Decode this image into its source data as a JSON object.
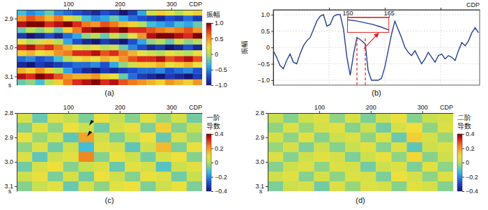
{
  "chart_data": [
    {
      "type": "heatmap",
      "panel_label": "(a)",
      "x": [
        9,
        27,
        45,
        63,
        81,
        99,
        117,
        135,
        153,
        171,
        189,
        207,
        225,
        243,
        261,
        279,
        297,
        315,
        333,
        351
      ],
      "y": [
        2.88,
        2.9,
        2.92,
        2.94,
        2.96,
        2.98,
        3.0,
        3.02,
        3.04,
        3.06,
        3.08,
        3.1,
        3.12
      ],
      "z": [
        [
          -0.3,
          -0.5,
          -0.4,
          -0.2,
          -0.5,
          -0.6,
          -0.7,
          -0.8,
          -0.9,
          -0.7,
          -0.8,
          -1.0,
          -0.8,
          -0.4,
          0.1,
          0.3,
          0.2,
          0.0,
          0.2,
          0.3
        ],
        [
          0.5,
          0.7,
          0.6,
          0.4,
          0.6,
          0.3,
          0.0,
          -0.3,
          -0.5,
          -0.4,
          -0.2,
          -0.4,
          -0.6,
          -0.7,
          -0.8,
          -0.9,
          -0.7,
          -0.8,
          -0.6,
          -0.8
        ],
        [
          0.9,
          1.0,
          1.0,
          0.8,
          0.9,
          1.0,
          0.8,
          0.6,
          0.5,
          0.7,
          0.6,
          0.4,
          0.3,
          0.0,
          -0.3,
          -0.4,
          -0.5,
          -0.3,
          -0.4,
          -0.2
        ],
        [
          -0.2,
          0.0,
          -0.1,
          0.1,
          -0.2,
          0.3,
          0.6,
          0.9,
          1.0,
          1.0,
          0.9,
          1.0,
          0.8,
          0.8,
          0.7,
          0.6,
          0.5,
          0.6,
          0.7,
          0.5
        ],
        [
          -0.8,
          -1.0,
          -0.9,
          -0.7,
          -0.9,
          -0.6,
          -0.4,
          -0.1,
          0.0,
          -0.2,
          0.1,
          -0.1,
          0.2,
          0.5,
          0.9,
          1.0,
          1.0,
          0.9,
          0.8,
          1.0
        ],
        [
          0.2,
          0.0,
          0.1,
          0.3,
          0.0,
          -0.4,
          -0.7,
          -0.9,
          -1.0,
          -0.8,
          -0.9,
          -1.0,
          -0.7,
          -0.4,
          -0.1,
          0.0,
          -0.2,
          0.1,
          -0.1,
          0.0
        ],
        [
          0.8,
          0.9,
          0.7,
          0.8,
          0.6,
          0.4,
          0.2,
          0.1,
          0.2,
          0.0,
          0.1,
          -0.2,
          -0.5,
          -0.7,
          -0.9,
          -0.8,
          -1.0,
          -0.9,
          -0.7,
          -0.9
        ],
        [
          0.3,
          0.4,
          0.2,
          0.3,
          0.5,
          0.6,
          0.8,
          0.8,
          0.9,
          0.7,
          0.8,
          0.6,
          0.4,
          0.2,
          0.1,
          0.0,
          0.2,
          0.1,
          0.0,
          0.2
        ],
        [
          -0.6,
          -0.5,
          -0.7,
          -0.6,
          -0.3,
          0.0,
          0.2,
          0.3,
          0.2,
          0.4,
          0.3,
          0.5,
          0.7,
          0.8,
          0.8,
          0.9,
          0.7,
          0.8,
          0.9,
          0.7
        ],
        [
          -0.9,
          -1.0,
          -0.8,
          -0.9,
          -0.8,
          -0.7,
          -0.6,
          -0.6,
          -0.5,
          -0.7,
          -0.4,
          -0.1,
          0.1,
          0.3,
          0.3,
          0.4,
          0.2,
          0.3,
          0.4,
          0.2
        ],
        [
          0.4,
          0.3,
          0.5,
          0.3,
          0.0,
          -0.4,
          -0.7,
          -0.9,
          -1.0,
          -0.8,
          -0.9,
          -0.8,
          -0.7,
          -0.6,
          -0.6,
          -0.5,
          -0.7,
          -0.6,
          -0.5,
          -0.7
        ],
        [
          0.9,
          0.8,
          1.0,
          0.9,
          0.7,
          0.5,
          0.4,
          0.4,
          0.5,
          0.3,
          0.2,
          -0.2,
          -0.6,
          -0.8,
          -0.9,
          -1.0,
          -0.8,
          -0.9,
          -1.0,
          -0.8
        ],
        [
          -0.2,
          -0.1,
          -0.3,
          0.0,
          0.3,
          0.6,
          0.8,
          0.9,
          1.0,
          0.8,
          0.9,
          0.7,
          0.6,
          0.5,
          0.4,
          0.3,
          0.5,
          0.4,
          0.3,
          0.5
        ]
      ],
      "xlim": [
        0,
        360
      ],
      "xticks": [
        100,
        200,
        300
      ],
      "x_label": "CDP",
      "ylim": [
        2.87,
        3.13
      ],
      "yticks": [
        2.9,
        {
          "value": 3,
          "label": "3.0"
        },
        3.1
      ],
      "y_label": "s",
      "colorbar": {
        "title": "振幅",
        "lim": [
          -1,
          1
        ],
        "ticks": [
          {
            "value": 1,
            "label": "1.0"
          },
          0.5,
          0,
          {
            "value": -0.5,
            "label": "−0.5"
          },
          {
            "value": -1,
            "label": "−1.0"
          }
        ]
      }
    },
    {
      "type": "line",
      "panel_label": "(b)",
      "x": [
        0,
        6,
        12,
        18,
        24,
        30,
        36,
        42,
        48,
        54,
        60,
        66,
        72,
        78,
        84,
        90,
        96,
        102,
        108,
        114,
        120,
        126,
        132,
        138,
        144,
        150,
        155,
        160,
        165,
        170,
        176,
        182,
        188,
        194,
        200,
        206,
        212,
        218,
        224,
        230,
        236,
        242,
        248,
        254,
        260,
        266,
        272,
        278,
        284,
        290,
        296,
        302,
        308,
        314,
        320,
        326,
        332,
        338,
        344,
        350,
        356,
        362,
        368
      ],
      "values": [
        -0.1,
        -0.3,
        -0.55,
        -0.65,
        -0.4,
        -0.2,
        -0.45,
        -0.5,
        -0.2,
        0.05,
        0.2,
        0.3,
        0.55,
        0.8,
        0.95,
        1.0,
        0.65,
        0.7,
        0.95,
        1.0,
        1.0,
        0.55,
        -0.3,
        -0.85,
        -0.2,
        0.3,
        0.25,
        0.18,
        0.1,
        -0.7,
        -1.0,
        -1.0,
        -1.0,
        -0.95,
        -0.6,
        -0.1,
        0.4,
        0.8,
        0.55,
        0.3,
        0.0,
        -0.15,
        -0.25,
        -0.1,
        -0.3,
        -0.5,
        -0.35,
        -0.15,
        -0.3,
        -0.45,
        -0.25,
        -0.2,
        -0.35,
        -0.25,
        -0.3,
        -0.4,
        -0.1,
        0.15,
        0.05,
        0.2,
        0.45,
        0.6,
        0.45
      ],
      "color": "#23408e",
      "xlim": [
        0,
        370
      ],
      "xticks": [
        100,
        200,
        300
      ],
      "x_label": "CDP",
      "ylim": [
        -1.15,
        1.15
      ],
      "yticks": [
        {
          "value": 1,
          "label": "1.0"
        },
        0.5,
        0,
        {
          "value": -0.5,
          "label": "−0.5"
        },
        {
          "value": -1,
          "label": "−1.0"
        }
      ],
      "y_label": "振幅",
      "grid": true,
      "tick_labels": "y",
      "inset": {
        "x": [
          150,
          153,
          156,
          159,
          162,
          165
        ],
        "values": [
          0.3,
          0.28,
          0.245,
          0.21,
          0.16,
          0.1
        ],
        "xlim": [
          150,
          165
        ],
        "xticks": [
          150,
          165
        ],
        "ylim": [
          0.05,
          0.35
        ]
      }
    },
    {
      "type": "heatmap",
      "panel_label": "(c)",
      "x": [
        15,
        45,
        75,
        105,
        135,
        165,
        195,
        225,
        255,
        285,
        315,
        345
      ],
      "y": [
        2.82,
        2.86,
        2.9,
        2.94,
        2.98,
        3.02,
        3.06,
        3.1
      ],
      "z": [
        [
          0.05,
          -0.08,
          0.06,
          0.02,
          -0.06,
          0.08,
          0.03,
          -0.05,
          0.07,
          -0.03,
          0.05,
          -0.07
        ],
        [
          -0.06,
          0.07,
          -0.04,
          0.09,
          0.03,
          -0.07,
          0.05,
          0.08,
          -0.06,
          0.12,
          -0.05,
          0.04
        ],
        [
          0.08,
          -0.03,
          0.05,
          -0.09,
          0.18,
          0.04,
          -0.06,
          0.03,
          0.09,
          -0.08,
          0.06,
          -0.03
        ],
        [
          -0.04,
          0.06,
          -0.07,
          0.04,
          -0.12,
          0.07,
          0.05,
          -0.09,
          0.04,
          0.15,
          -0.06,
          0.08
        ],
        [
          0.06,
          -0.09,
          0.04,
          0.07,
          0.22,
          -0.05,
          0.08,
          0.04,
          -0.07,
          0.05,
          0.09,
          -0.05
        ],
        [
          -0.07,
          0.05,
          0.09,
          -0.05,
          0.03,
          0.06,
          -0.08,
          0.07,
          0.05,
          -0.1,
          0.04,
          0.07
        ],
        [
          0.04,
          0.08,
          -0.06,
          0.05,
          -0.07,
          0.09,
          0.04,
          -0.05,
          0.08,
          0.06,
          -0.07,
          0.03
        ],
        [
          -0.05,
          0.03,
          0.07,
          -0.08,
          0.05,
          -0.04,
          0.07,
          0.09,
          -0.06,
          0.04,
          0.08,
          -0.06
        ]
      ],
      "xlim": [
        0,
        360
      ],
      "xticks": [
        100,
        200,
        300
      ],
      "x_label": "CDP",
      "ylim": [
        2.8,
        3.12
      ],
      "yticks": [
        2.8,
        2.9,
        {
          "value": 3,
          "label": "3.0"
        },
        3.1
      ],
      "y_label": "s",
      "colorbar": {
        "title": "一阶导数",
        "lim": [
          -0.4,
          0.4
        ],
        "ticks": [
          0.4,
          0.2,
          0,
          {
            "value": -0.2,
            "label": "−0.2"
          },
          {
            "value": -0.4,
            "label": "−0.4"
          }
        ]
      }
    },
    {
      "type": "heatmap",
      "panel_label": "(d)",
      "x": [
        15,
        45,
        75,
        105,
        135,
        165,
        195,
        225,
        255,
        285,
        315,
        345
      ],
      "y": [
        2.82,
        2.86,
        2.9,
        2.94,
        2.98,
        3.02,
        3.06,
        3.1
      ],
      "z": [
        [
          0.03,
          -0.05,
          0.04,
          0.06,
          -0.04,
          0.05,
          -0.06,
          0.04,
          0.08,
          -0.05,
          0.03,
          0.05
        ],
        [
          -0.04,
          0.06,
          -0.03,
          0.05,
          0.07,
          -0.05,
          0.04,
          -0.07,
          0.05,
          0.1,
          -0.04,
          0.06
        ],
        [
          0.05,
          -0.04,
          0.07,
          -0.05,
          0.04,
          0.06,
          -0.04,
          0.06,
          -0.08,
          0.12,
          0.05,
          -0.03
        ],
        [
          -0.03,
          0.05,
          -0.06,
          0.04,
          -0.05,
          0.03,
          0.07,
          -0.05,
          0.06,
          -0.09,
          0.04,
          0.06
        ],
        [
          0.06,
          -0.05,
          0.04,
          0.07,
          0.05,
          -0.06,
          0.04,
          0.08,
          -0.04,
          0.11,
          -0.05,
          0.04
        ],
        [
          -0.05,
          0.04,
          0.06,
          -0.04,
          0.06,
          0.05,
          -0.07,
          0.04,
          0.06,
          -0.06,
          0.07,
          -0.04
        ],
        [
          0.04,
          0.07,
          -0.05,
          0.05,
          -0.04,
          0.06,
          0.05,
          -0.06,
          0.09,
          0.05,
          -0.04,
          0.06
        ],
        [
          -0.06,
          0.04,
          0.05,
          -0.07,
          0.06,
          -0.03,
          0.06,
          0.05,
          -0.05,
          0.07,
          0.05,
          -0.05
        ]
      ],
      "xlim": [
        0,
        360
      ],
      "xticks": [
        100,
        200,
        300
      ],
      "x_label": "CDP",
      "ylim": [
        2.8,
        3.12
      ],
      "yticks": [
        2.8,
        2.9,
        {
          "value": 3,
          "label": "3.0"
        },
        3.1
      ],
      "y_label": "s",
      "colorbar": {
        "title": "二阶导数",
        "lim": [
          -0.4,
          0.4
        ],
        "ticks": [
          0.4,
          0.2,
          0,
          {
            "value": -0.2,
            "label": "−0.2"
          },
          {
            "value": -0.4,
            "label": "−0.4"
          }
        ]
      }
    }
  ]
}
